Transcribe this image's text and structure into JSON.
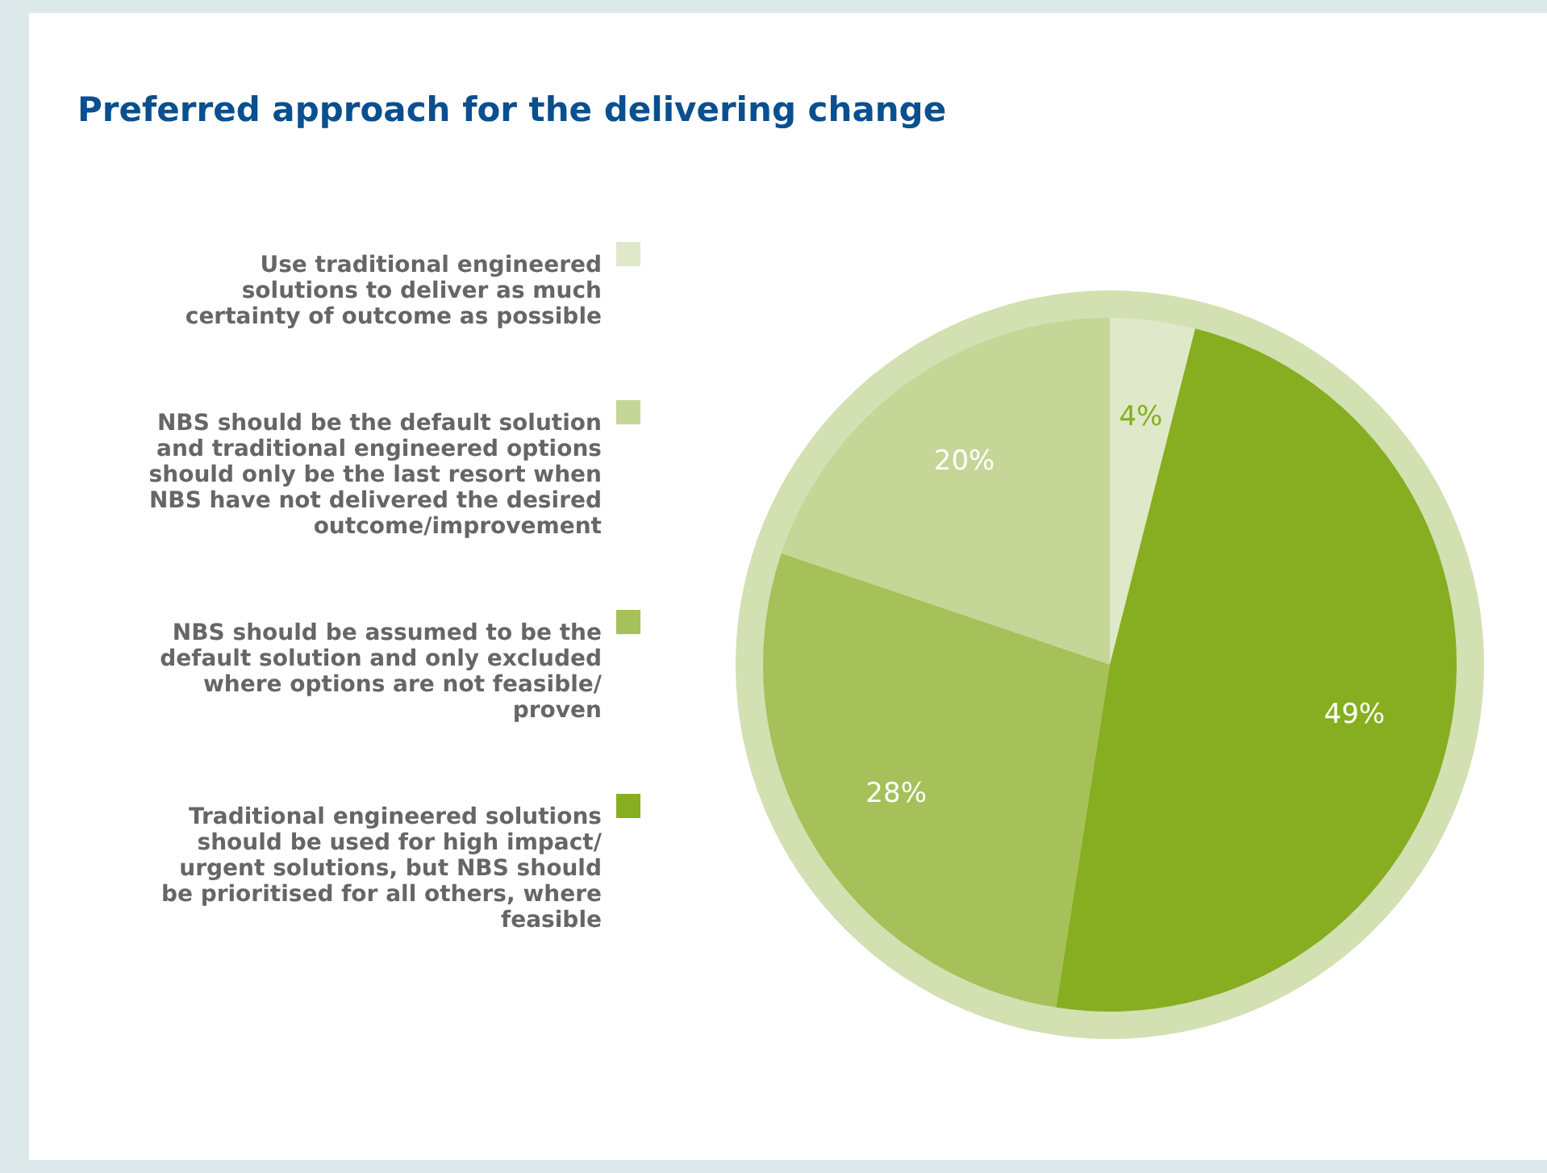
{
  "chart_data": {
    "type": "pie",
    "title": "Preferred approach for the delivering change",
    "categories": [
      "Use traditional engineered solutions to deliver as much certainty of outcome as possible",
      "NBS should be the default solution and traditional engineered options should only be the last resort when NBS have not delivered the desired outcome/improvement",
      "NBS should be assumed to be the default solution and only excluded where options are not feasible/ proven",
      "Traditional engineered solutions should be used for high impact/ urgent solutions, but NBS should be prioritised for all others, where feasible"
    ],
    "values": [
      4,
      20,
      28,
      49
    ],
    "colors": [
      "#dfe9c9",
      "#c5d696",
      "#a6c05a",
      "#86ae20"
    ],
    "value_labels": [
      "4%",
      "20%",
      "28%",
      "49%"
    ],
    "legend": "left"
  }
}
